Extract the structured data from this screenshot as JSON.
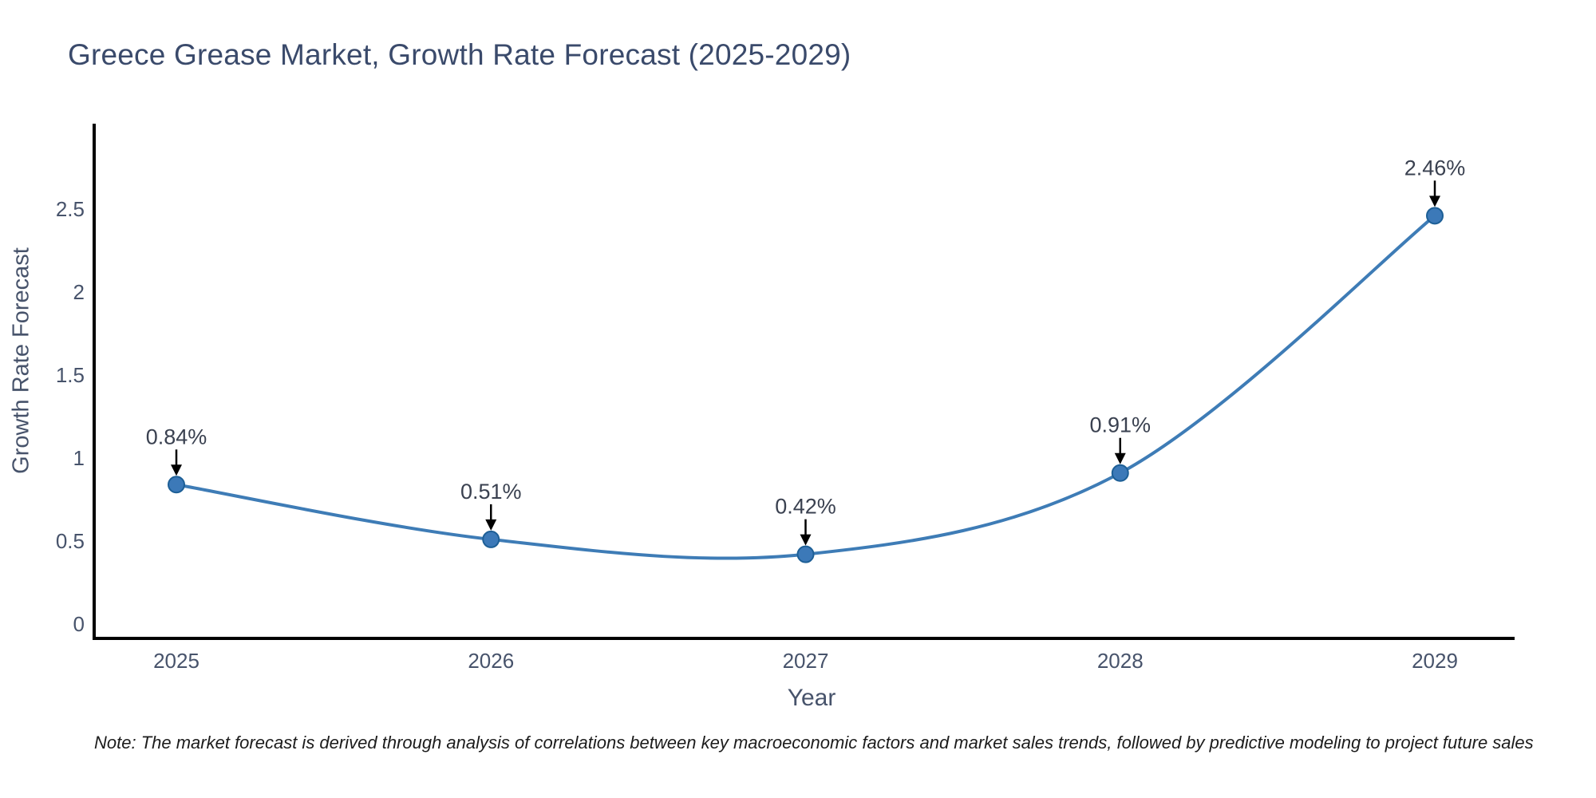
{
  "title": "Greece Grease Market, Growth Rate Forecast (2025-2029)",
  "note": "Note: The market forecast is derived through analysis of correlations between key macroeconomic factors and market sales trends, followed by predictive modeling to project future sales",
  "chart_data": {
    "type": "line",
    "title": "Greece Grease Market, Growth Rate Forecast (2025-2029)",
    "xlabel": "Year",
    "ylabel": "Growth Rate Forecast",
    "x": [
      2025,
      2026,
      2027,
      2028,
      2029
    ],
    "values": [
      0.84,
      0.51,
      0.42,
      0.91,
      2.46
    ],
    "point_labels": [
      "0.84%",
      "0.51%",
      "0.42%",
      "0.91%",
      "2.46%"
    ],
    "yticks": [
      0,
      0.5,
      1,
      1.5,
      2,
      2.5
    ],
    "ylim": [
      -0.09,
      3.0
    ],
    "grid": false,
    "legend": "none",
    "smooth": true,
    "colors": {
      "line": "#3e7cb6",
      "marker_fill": "#3c79b8",
      "marker_edge": "#1d5f96",
      "axis": "#000000",
      "tick_text": "#47536b",
      "annotation_text": "#3a4150",
      "arrow": "#000000",
      "title_text": "#3a4a6b",
      "note_text": "#1c1c1c",
      "background": "#ffffff"
    }
  }
}
